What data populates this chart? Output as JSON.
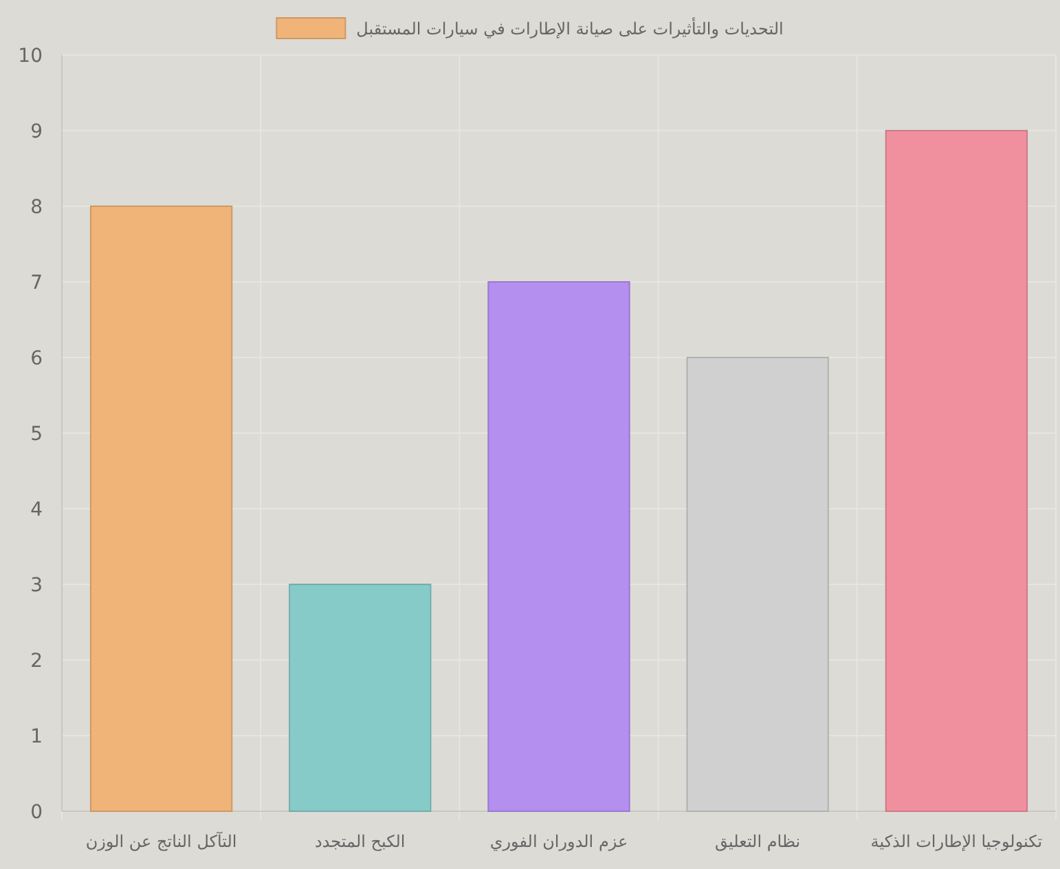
{
  "chart_data": {
    "type": "bar",
    "categories": [
      "التآكل الناتج عن الوزن",
      "الكبح المتجدد",
      "عزم الدوران الفوري",
      "نظام التعليق",
      "تكنولوجيا الإطارات الذكية"
    ],
    "series": [
      {
        "name": "التحديات والتأثيرات على صيانة الإطارات في سيارات المستقبل",
        "color": "#f0b478",
        "colors": [
          "#f0b478",
          "#87cbc9",
          "#b48ff0",
          "#d0d0d0",
          "#f0909f"
        ],
        "values": [
          8,
          3,
          7,
          6,
          9
        ]
      }
    ],
    "ylim": [
      0,
      10
    ],
    "yticks": [
      0,
      1,
      2,
      3,
      4,
      5,
      6,
      7,
      8,
      9,
      10
    ],
    "grid": true,
    "legend": "top"
  }
}
